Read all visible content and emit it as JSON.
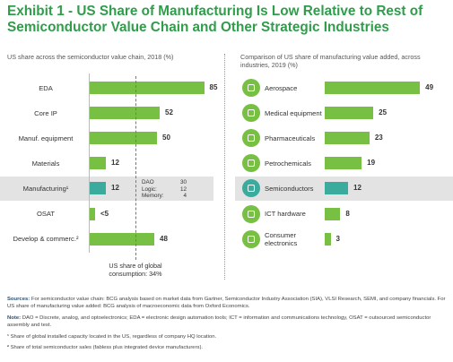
{
  "title": "Exhibit 1 - US Share of Manufacturing Is Low Relative to Rest of Semiconductor Value Chain and Other Strategic Industries",
  "chart_data": [
    {
      "type": "bar",
      "orientation": "horizontal",
      "subtitle": "US share across the semiconductor value chain, 2018 (%)",
      "categories": [
        "EDA",
        "Core IP",
        "Manuf. equipment",
        "Materials",
        "Manufacturing¹",
        "OSAT",
        "Develop & commerc.²"
      ],
      "values": [
        85,
        52,
        50,
        12,
        12,
        4,
        48
      ],
      "value_labels": [
        "85",
        "52",
        "50",
        "12",
        "12",
        "<5",
        "48"
      ],
      "color": "#78c043",
      "highlight_color": "#3aab9c",
      "highlight": 4,
      "xlim": [
        0,
        100
      ],
      "breakdown": [
        {
          "label": "DAO",
          "value": 30
        },
        {
          "label": "Logic:",
          "value": 12
        },
        {
          "label": "Memory:",
          "value": 4
        }
      ],
      "reference": {
        "value": 34,
        "label": "US share of global consumption: 34%"
      }
    },
    {
      "type": "bar",
      "orientation": "horizontal",
      "subtitle": "Comparison of US share of manufacturing value added, across industries, 2019 (%)",
      "categories": [
        "Aerospace",
        "Medical equipment",
        "Pharmaceuticals",
        "Petrochemicals",
        "Semiconductors",
        "ICT hardware",
        "Consumer electronics"
      ],
      "values": [
        49,
        25,
        23,
        19,
        12,
        8,
        3
      ],
      "color": "#78c043",
      "highlight_color": "#3aab9c",
      "highlight": 4,
      "xlim": [
        0,
        60
      ]
    }
  ],
  "footnotes": [
    {
      "label": "Sources:",
      "text": "For semiconductor value chain: BCG analysis based on market data from Gartner, Semiconductor Industry Association (SIA), VLSI Research, SEMI, and company financials. For US share of manufacturing value added: BCG analysis of macroeconomic data from Oxford Economics."
    },
    {
      "label": "Note:",
      "text": "DAO = Discrete, analog, and optoelectronics; EDA = electronic design automation tools; ICT = information and communications technology, OSAT = outsourced semiconductor assembly and test."
    },
    {
      "label": "¹",
      "text": "Share of global installed capacity located in the US, regardless of company HQ location."
    },
    {
      "label": "²",
      "text": "Share of total semiconductor sales (fabless plus integrated device manufacturers)."
    }
  ]
}
